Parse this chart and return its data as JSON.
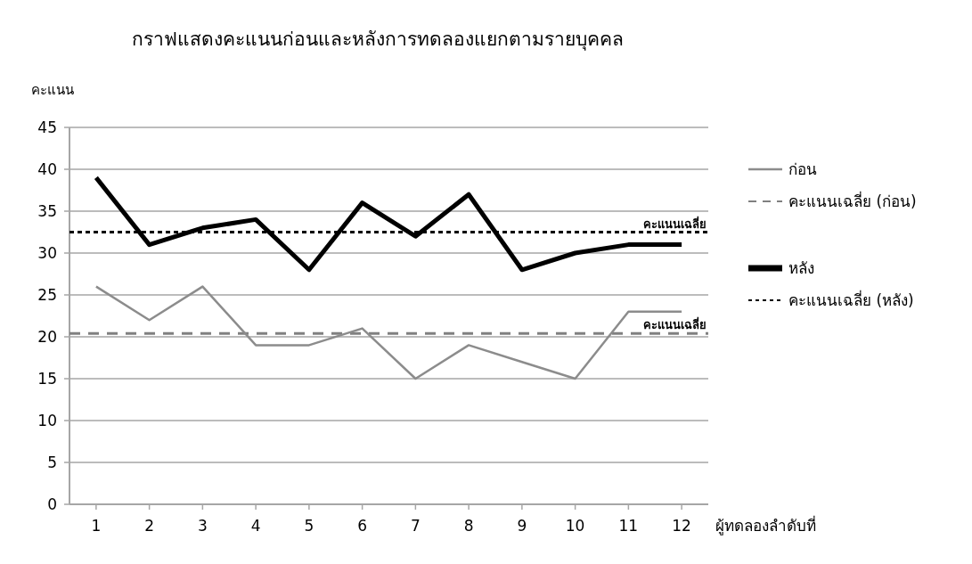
{
  "chart_data": {
    "type": "line",
    "title": "กราฟแสดงคะแนนก่อนและหลังการทดลองแยกตามรายบุคคล",
    "ylabel": "คะแนน",
    "xlabel": "ผู้ทดลองลำดับที่",
    "x": [
      1,
      2,
      3,
      4,
      5,
      6,
      7,
      8,
      9,
      10,
      11,
      12
    ],
    "xlim": [
      0.5,
      12.5
    ],
    "xticks": [
      1,
      2,
      3,
      4,
      5,
      6,
      7,
      8,
      9,
      10,
      11,
      12
    ],
    "ylim": [
      0,
      45
    ],
    "yticks": [
      0,
      5,
      10,
      15,
      20,
      25,
      30,
      35,
      40,
      45
    ],
    "grid": "y",
    "legend": "right",
    "marker": "none",
    "series": [
      {
        "name": "ก่อน",
        "color": "#8c8c8c",
        "values": [
          26,
          22,
          26,
          19,
          19,
          21,
          15,
          19,
          17,
          15,
          23,
          23
        ]
      },
      {
        "name": "หลัง",
        "color": "#000000",
        "values": [
          39,
          31,
          33,
          34,
          28,
          36,
          32,
          37,
          28,
          30,
          31,
          31
        ]
      }
    ],
    "ref_lines": [
      {
        "axis": "y",
        "value": 20.4,
        "label": "คะแนนเฉลี่ย",
        "color": "#808080",
        "line_style": "dashed"
      },
      {
        "axis": "y",
        "value": 32.5,
        "label": "คะแนนเฉลี่ย",
        "color": "#000000",
        "line_style": "dotted"
      }
    ],
    "annotations": [
      "คะแนนเฉลี่ย (ก่อน)",
      "คะแนนเฉลี่ย (หลัง)"
    ]
  }
}
